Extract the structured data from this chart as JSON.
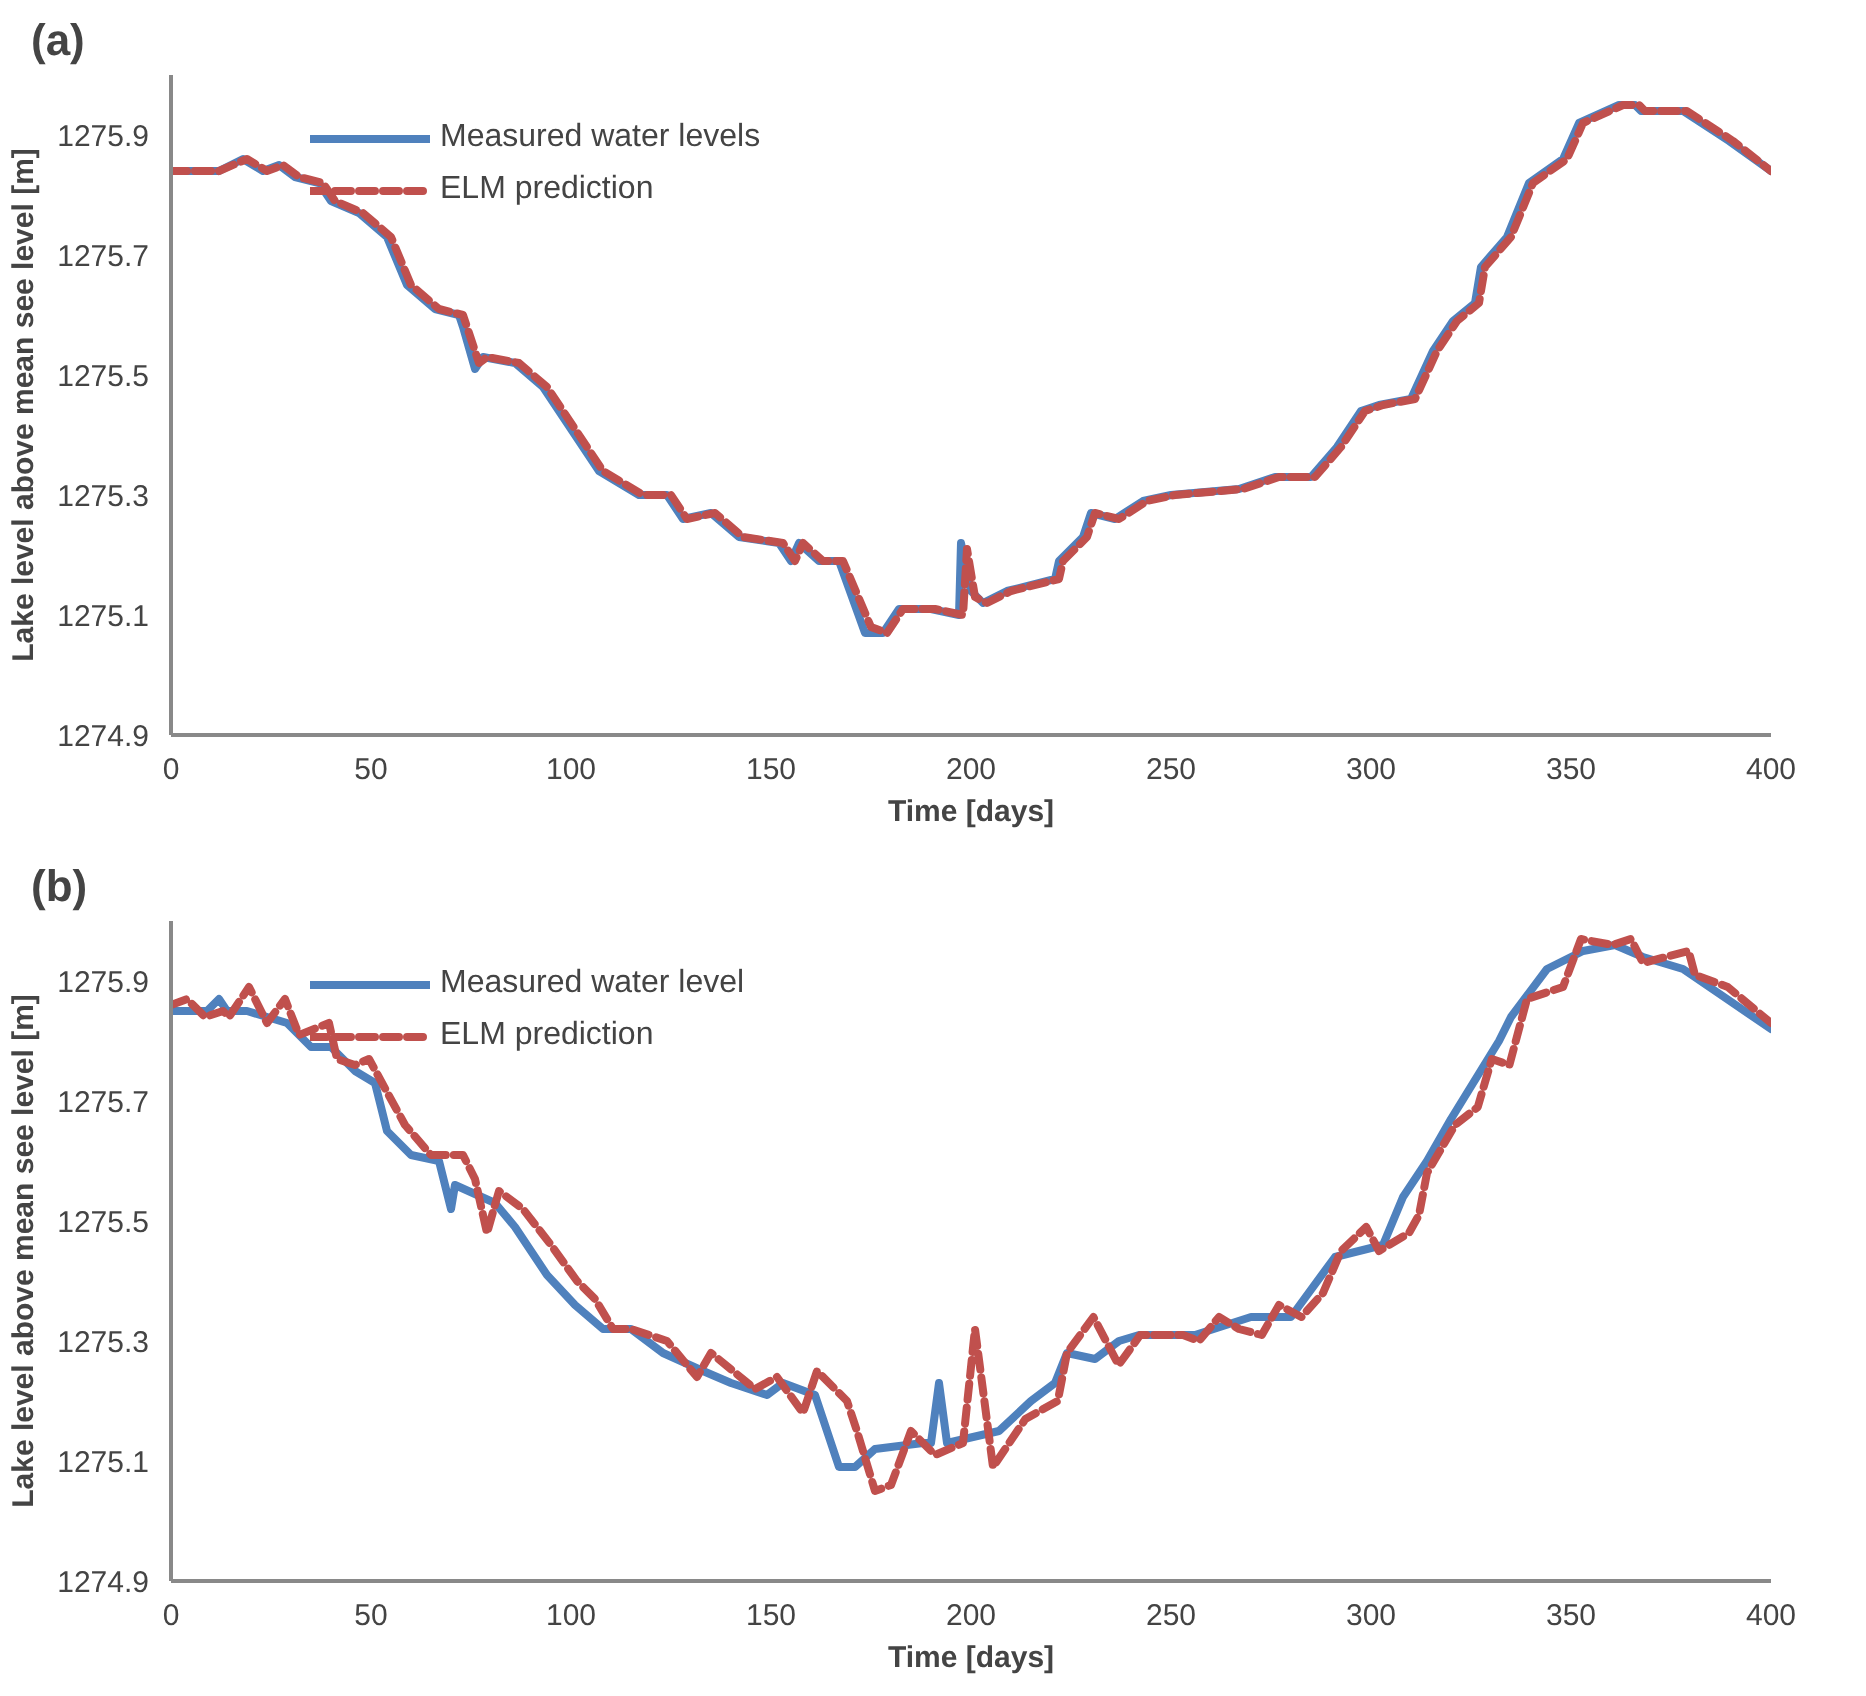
{
  "chart_data": [
    {
      "type": "line",
      "title": "(a)",
      "xlabel": "Time [days]",
      "ylabel": "Lake level above mean see level [m]",
      "xlim": [
        0,
        400
      ],
      "xticks": [
        0,
        50,
        100,
        150,
        200,
        250,
        300,
        350,
        400
      ],
      "ylim": [
        1274.9,
        1276.0
      ],
      "yticks": [
        1274.9,
        1275.1,
        1275.3,
        1275.5,
        1275.7,
        1275.9
      ],
      "grid": false,
      "legend": "top left",
      "series": [
        {
          "name": "Measured water levels",
          "color": "#4f81bd",
          "line_style": "solid",
          "x": [
            0,
            12,
            18,
            23,
            27,
            31,
            37,
            40,
            47,
            54,
            59,
            66,
            72,
            73,
            76,
            78,
            86,
            93,
            100,
            107,
            117,
            124,
            128,
            135,
            142,
            152,
            155,
            157,
            162,
            167,
            173.5,
            178,
            182,
            190,
            197,
            197.5,
            200,
            203,
            209,
            221,
            222,
            228,
            230,
            236,
            243,
            250,
            267,
            276,
            285,
            291.5,
            297.5,
            302,
            310,
            315.5,
            320.5,
            326,
            327.5,
            334,
            339.5,
            348,
            352,
            362,
            366,
            367.5,
            378,
            389.5,
            400
          ],
          "values": [
            1275.84,
            1275.84,
            1275.86,
            1275.84,
            1275.85,
            1275.83,
            1275.82,
            1275.79,
            1275.77,
            1275.73,
            1275.65,
            1275.61,
            1275.6,
            1275.58,
            1275.51,
            1275.53,
            1275.52,
            1275.48,
            1275.41,
            1275.34,
            1275.3,
            1275.3,
            1275.26,
            1275.27,
            1275.23,
            1275.22,
            1275.19,
            1275.22,
            1275.19,
            1275.19,
            1275.07,
            1275.07,
            1275.11,
            1275.11,
            1275.1,
            1275.22,
            1275.14,
            1275.12,
            1275.14,
            1275.16,
            1275.19,
            1275.23,
            1275.27,
            1275.26,
            1275.29,
            1275.3,
            1275.31,
            1275.33,
            1275.33,
            1275.38,
            1275.44,
            1275.45,
            1275.46,
            1275.54,
            1275.59,
            1275.62,
            1275.68,
            1275.73,
            1275.82,
            1275.86,
            1275.92,
            1275.95,
            1275.95,
            1275.94,
            1275.94,
            1275.89,
            1275.84
          ]
        },
        {
          "name": "ELM prediction",
          "color": "#c0504d",
          "line_style": "dashed",
          "x": [
            0,
            12,
            19,
            24,
            28,
            32,
            38,
            41,
            48,
            55,
            60,
            67,
            73,
            74,
            77,
            79,
            87,
            94,
            101,
            108,
            118,
            125,
            129,
            136,
            143,
            153,
            156,
            158,
            163,
            168,
            175,
            179,
            183,
            191,
            198,
            199,
            201,
            204,
            210,
            222,
            223,
            229,
            231,
            237,
            244,
            251,
            268,
            277,
            286,
            292.5,
            298.5,
            303,
            311,
            316.5,
            321.5,
            327,
            328.5,
            335,
            340.5,
            349,
            353,
            363,
            367,
            368.5,
            379,
            390.5,
            400
          ],
          "values": [
            1275.84,
            1275.84,
            1275.86,
            1275.84,
            1275.85,
            1275.83,
            1275.82,
            1275.79,
            1275.77,
            1275.73,
            1275.65,
            1275.61,
            1275.6,
            1275.58,
            1275.52,
            1275.53,
            1275.52,
            1275.48,
            1275.41,
            1275.34,
            1275.3,
            1275.3,
            1275.26,
            1275.27,
            1275.23,
            1275.22,
            1275.19,
            1275.22,
            1275.19,
            1275.19,
            1275.08,
            1275.07,
            1275.11,
            1275.11,
            1275.1,
            1275.21,
            1275.13,
            1275.12,
            1275.14,
            1275.16,
            1275.19,
            1275.23,
            1275.27,
            1275.26,
            1275.29,
            1275.3,
            1275.31,
            1275.33,
            1275.33,
            1275.38,
            1275.44,
            1275.45,
            1275.46,
            1275.54,
            1275.59,
            1275.62,
            1275.68,
            1275.73,
            1275.82,
            1275.86,
            1275.92,
            1275.95,
            1275.95,
            1275.94,
            1275.94,
            1275.89,
            1275.84
          ]
        }
      ]
    },
    {
      "type": "line",
      "title": "(b)",
      "xlabel": "Time [days]",
      "ylabel": "Lake level above mean see level [m]",
      "xlim": [
        0,
        400
      ],
      "xticks": [
        0,
        50,
        100,
        150,
        200,
        250,
        300,
        350,
        400
      ],
      "ylim": [
        1274.9,
        1276.0
      ],
      "yticks": [
        1274.9,
        1275.1,
        1275.3,
        1275.5,
        1275.7,
        1275.9
      ],
      "grid": false,
      "legend": "top left",
      "series": [
        {
          "name": "Measured water level",
          "color": "#4f81bd",
          "line_style": "solid",
          "x": [
            0,
            9,
            12,
            14,
            19,
            29,
            35,
            40,
            46,
            51,
            54,
            60,
            67,
            70,
            71,
            81,
            86,
            94,
            101,
            108,
            115,
            123,
            133,
            140,
            149,
            153,
            161,
            167,
            171,
            176,
            188,
            190,
            192,
            194,
            207,
            215,
            221,
            224,
            231,
            237,
            242,
            256,
            270,
            280,
            291,
            303,
            308,
            314,
            320,
            332,
            335,
            344,
            353,
            361,
            368,
            378,
            389,
            400
          ],
          "values": [
            1275.85,
            1275.85,
            1275.87,
            1275.85,
            1275.85,
            1275.83,
            1275.79,
            1275.79,
            1275.75,
            1275.73,
            1275.65,
            1275.61,
            1275.6,
            1275.52,
            1275.56,
            1275.53,
            1275.49,
            1275.41,
            1275.36,
            1275.32,
            1275.32,
            1275.28,
            1275.25,
            1275.23,
            1275.21,
            1275.23,
            1275.21,
            1275.09,
            1275.09,
            1275.12,
            1275.13,
            1275.13,
            1275.23,
            1275.13,
            1275.15,
            1275.2,
            1275.23,
            1275.28,
            1275.27,
            1275.3,
            1275.31,
            1275.31,
            1275.34,
            1275.34,
            1275.44,
            1275.46,
            1275.54,
            1275.6,
            1275.67,
            1275.8,
            1275.84,
            1275.92,
            1275.95,
            1275.96,
            1275.94,
            1275.92,
            1275.87,
            1275.82
          ]
        },
        {
          "name": "ELM prediction",
          "color": "#c0504d",
          "line_style": "dashed",
          "x": [
            0,
            4,
            8.5,
            13,
            14.5,
            19.5,
            24,
            28.5,
            32,
            39.5,
            41.5,
            46,
            49.5,
            58.5,
            65,
            73,
            76,
            79,
            82,
            88,
            95,
            101.5,
            106,
            110.5,
            115,
            124,
            131.5,
            135,
            146,
            151.5,
            158,
            161.5,
            169,
            171.5,
            176,
            180,
            185,
            191,
            198,
            201,
            205.5,
            213.6,
            221.7,
            224,
            230.6,
            236.9,
            242.3,
            253,
            257,
            262,
            267,
            272.7,
            277,
            282.6,
            288,
            292.5,
            298.8,
            302,
            309.5,
            312,
            314,
            321,
            326.7,
            330.2,
            334.6,
            339,
            348,
            352.5,
            360.4,
            365,
            368,
            379.4,
            381,
            389.2,
            400
          ],
          "values": [
            1275.86,
            1275.87,
            1275.84,
            1275.85,
            1275.84,
            1275.89,
            1275.83,
            1275.87,
            1275.81,
            1275.83,
            1275.77,
            1275.76,
            1275.77,
            1275.66,
            1275.61,
            1275.61,
            1275.57,
            1275.48,
            1275.55,
            1275.52,
            1275.46,
            1275.4,
            1275.37,
            1275.32,
            1275.32,
            1275.3,
            1275.24,
            1275.28,
            1275.22,
            1275.24,
            1275.18,
            1275.25,
            1275.2,
            1275.15,
            1275.05,
            1275.06,
            1275.15,
            1275.11,
            1275.13,
            1275.32,
            1275.09,
            1275.17,
            1275.2,
            1275.28,
            1275.34,
            1275.26,
            1275.31,
            1275.31,
            1275.3,
            1275.34,
            1275.32,
            1275.31,
            1275.36,
            1275.34,
            1275.38,
            1275.45,
            1275.49,
            1275.45,
            1275.48,
            1275.51,
            1275.58,
            1275.66,
            1275.69,
            1275.77,
            1275.76,
            1275.87,
            1275.89,
            1275.97,
            1275.96,
            1275.97,
            1275.93,
            1275.95,
            1275.91,
            1275.89,
            1275.83
          ]
        }
      ]
    }
  ]
}
